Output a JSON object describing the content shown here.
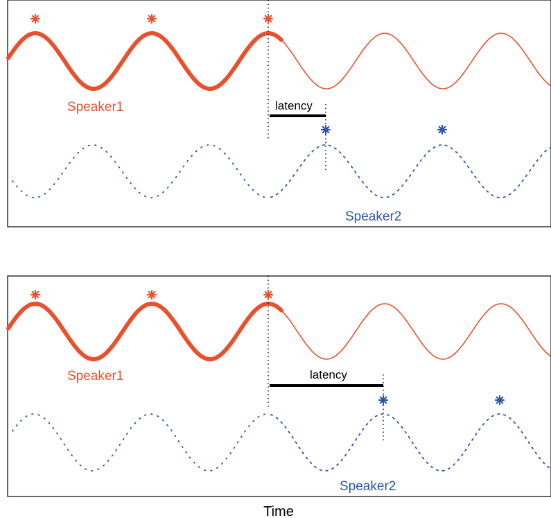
{
  "colors": {
    "speaker1": "#e8512d",
    "speaker2": "#2b57a8",
    "frame": "#000000",
    "latency_bar": "#000000"
  },
  "xlabel": "Time",
  "panels": [
    {
      "speaker1_label": "Speaker1",
      "speaker2_label": "Speaker2",
      "latency_label": "latency",
      "speaker2_style": "dotted"
    },
    {
      "speaker1_label": "Speaker1",
      "speaker2_label": "Speaker2",
      "latency_label": "latency",
      "speaker2_style": "dotted"
    }
  ]
}
